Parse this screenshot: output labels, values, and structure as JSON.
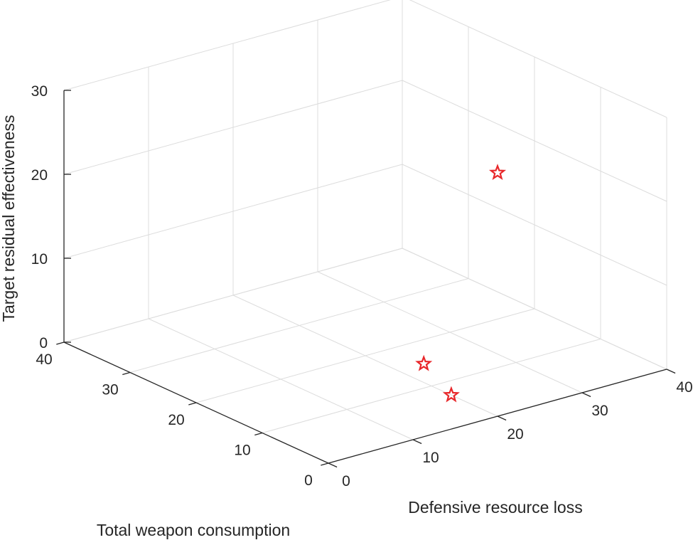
{
  "chart_data": {
    "type": "scatter3d",
    "xlabel": "Total weapon consumption",
    "ylabel": "Defensive resource loss",
    "zlabel": "Target residual effectiveness",
    "xlim": [
      0,
      40
    ],
    "ylim": [
      0,
      40
    ],
    "zlim": [
      0,
      30
    ],
    "xticks": [
      0,
      10,
      20,
      30,
      40
    ],
    "yticks": [
      0,
      10,
      20,
      30,
      40
    ],
    "zticks": [
      0,
      10,
      20,
      30
    ],
    "grid": true,
    "marker": "pentagram",
    "marker_color": "#e8272a",
    "points": [
      {
        "x": 7,
        "y": 20,
        "z": 0
      },
      {
        "x": 15,
        "y": 23,
        "z": 0
      },
      {
        "x": 0,
        "y": 20,
        "z": 29
      }
    ]
  }
}
